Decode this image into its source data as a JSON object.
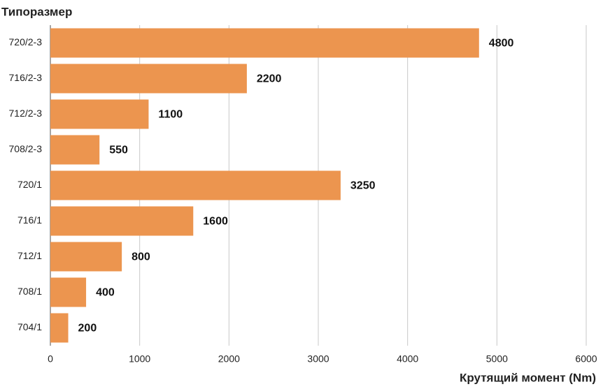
{
  "chart_data": {
    "type": "bar",
    "orientation": "horizontal",
    "y_label": "Типоразмер",
    "x_label": "Крутящий момент (Nm)",
    "categories": [
      "720/2-3",
      "716/2-3",
      "712/2-3",
      "708/2-3",
      "720/1",
      "716/1",
      "712/1",
      "708/1",
      "704/1"
    ],
    "values": [
      4800,
      2200,
      1100,
      550,
      3250,
      1600,
      800,
      400,
      200
    ],
    "color": "#ec954f",
    "xlim": [
      0,
      6000
    ],
    "xticks": [
      0,
      1000,
      2000,
      3000,
      4000,
      5000,
      6000
    ],
    "grid": true
  }
}
